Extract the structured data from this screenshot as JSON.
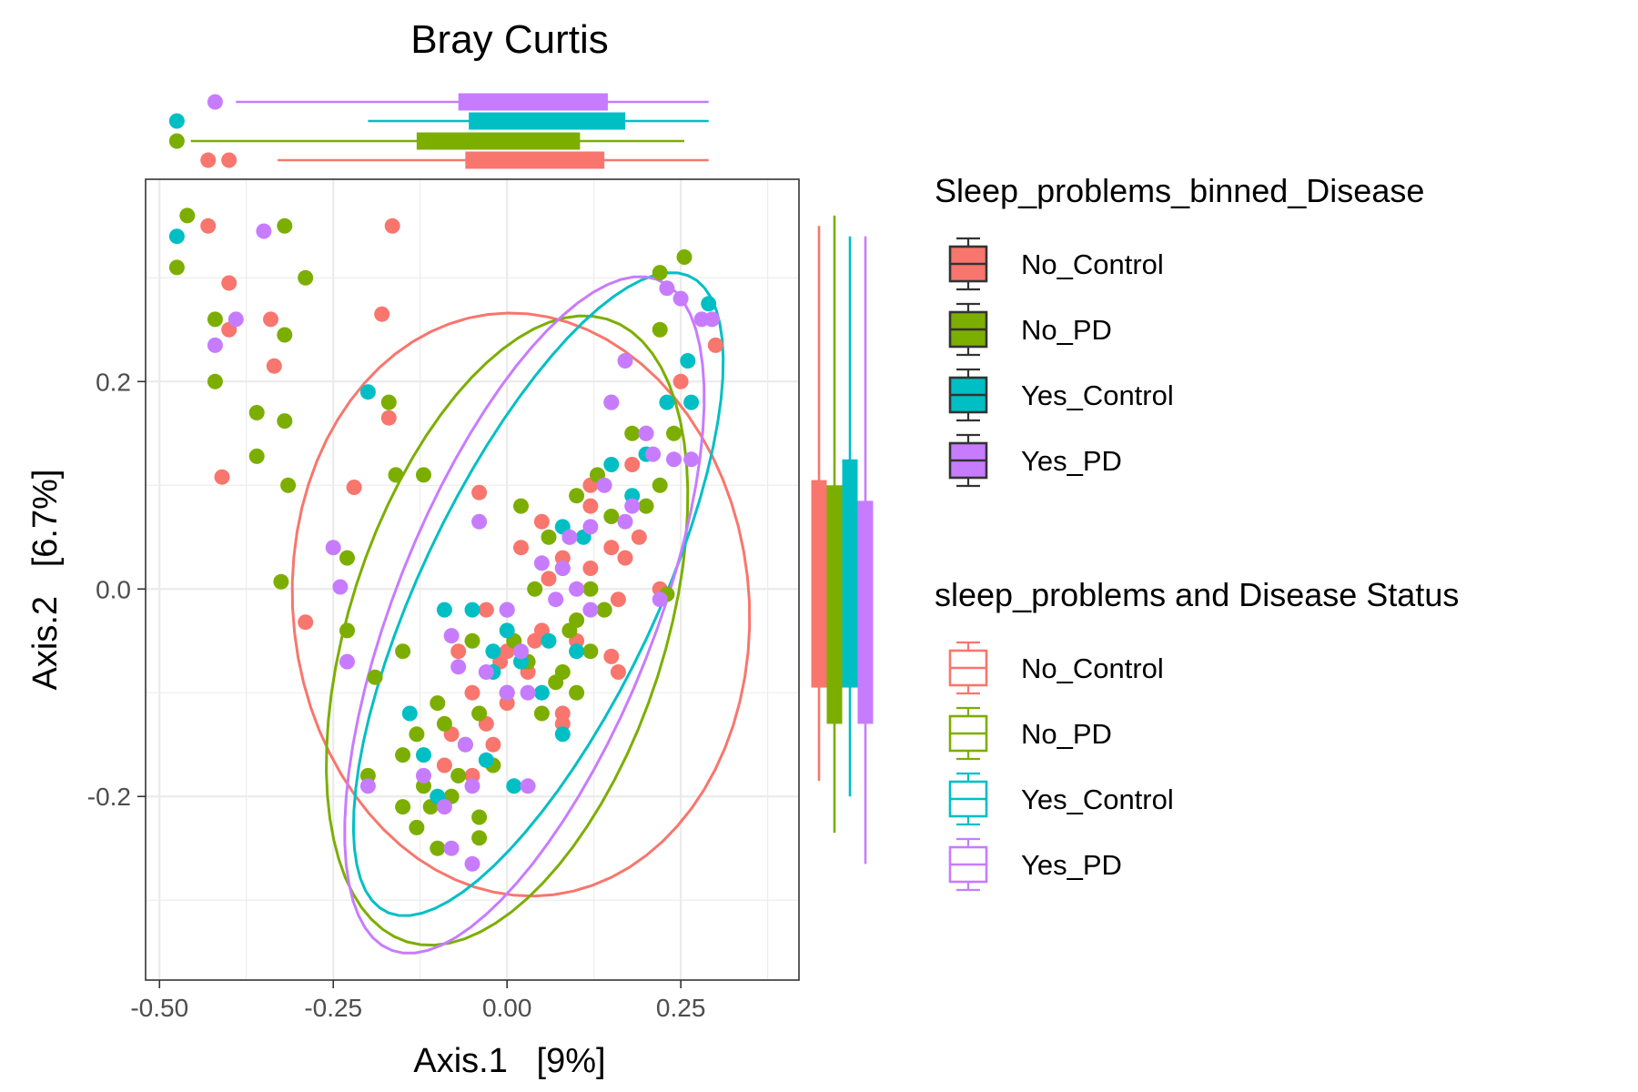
{
  "chart_data": {
    "type": "scatter",
    "title": "Bray Curtis",
    "xlabel": "Axis.1   [9%]",
    "ylabel": "Axis.2   [6.7%]",
    "xlim": [
      -0.52,
      0.42
    ],
    "ylim": [
      -0.377,
      0.395
    ],
    "xticks": [
      -0.5,
      -0.25,
      0.0,
      0.25
    ],
    "xtick_labels": [
      "-0.50",
      "-0.25",
      "0.00",
      "0.25"
    ],
    "yticks": [
      -0.2,
      0.0,
      0.2
    ],
    "ytick_labels": [
      "-0.2",
      "0.0",
      "0.2"
    ],
    "grid": true,
    "legend_fill_title": "Sleep_problems_binned_Disease",
    "legend_color_title": "sleep_problems and Disease Status",
    "legend_position": "right",
    "series": [
      {
        "name": "No_Control",
        "color": "#F8766D",
        "ellipse": {
          "cx": 0.02,
          "cy": -0.015,
          "rx": 0.28,
          "ry": 0.33,
          "angle": 82
        },
        "box_x": {
          "q1": -0.06,
          "median": 0.06,
          "q3": 0.14,
          "whisker_low": -0.33,
          "whisker_high": 0.29,
          "outliers": [
            -0.43,
            -0.4
          ]
        },
        "box_y": {
          "q1": -0.095,
          "median": -0.02,
          "q3": 0.105,
          "whisker_low": -0.185,
          "whisker_high": 0.35
        },
        "points": [
          [
            -0.43,
            0.35
          ],
          [
            -0.4,
            0.295
          ],
          [
            -0.34,
            0.26
          ],
          [
            -0.335,
            0.215
          ],
          [
            -0.4,
            0.25
          ],
          [
            -0.165,
            0.35
          ],
          [
            -0.18,
            0.265
          ],
          [
            -0.17,
            0.165
          ],
          [
            -0.41,
            0.108
          ],
          [
            -0.22,
            0.098
          ],
          [
            -0.29,
            -0.032
          ],
          [
            -0.04,
            0.093
          ],
          [
            0.05,
            0.065
          ],
          [
            0.08,
            0.03
          ],
          [
            0.12,
            0.02
          ],
          [
            0.16,
            -0.01
          ],
          [
            0.22,
            0.0
          ],
          [
            -0.03,
            -0.02
          ],
          [
            0.0,
            -0.06
          ],
          [
            0.05,
            -0.04
          ],
          [
            0.1,
            -0.05
          ],
          [
            0.15,
            -0.065
          ],
          [
            -0.07,
            -0.06
          ],
          [
            -0.05,
            -0.1
          ],
          [
            0.0,
            -0.11
          ],
          [
            0.03,
            -0.08
          ],
          [
            -0.02,
            -0.15
          ],
          [
            -0.05,
            -0.18
          ],
          [
            -0.03,
            -0.13
          ],
          [
            0.08,
            -0.12
          ],
          [
            -0.09,
            -0.17
          ],
          [
            0.15,
            0.04
          ],
          [
            0.18,
            0.12
          ],
          [
            0.25,
            0.2
          ],
          [
            0.2,
            0.15
          ],
          [
            0.12,
            0.08
          ],
          [
            0.09,
            0.05
          ],
          [
            0.14,
            -0.02
          ],
          [
            0.3,
            0.235
          ],
          [
            0.19,
            0.05
          ],
          [
            0.17,
            0.03
          ],
          [
            0.06,
            0.01
          ],
          [
            0.04,
            -0.05
          ],
          [
            -0.01,
            -0.07
          ],
          [
            -0.08,
            -0.14
          ],
          [
            0.12,
            0.1
          ],
          [
            0.02,
            0.04
          ],
          [
            0.0,
            -0.1
          ],
          [
            0.16,
            -0.08
          ],
          [
            0.08,
            -0.13
          ]
        ]
      },
      {
        "name": "No_PD",
        "color": "#7CAE00",
        "ellipse": {
          "cx": 0.0,
          "cy": -0.04,
          "rx": 0.34,
          "ry": 0.21,
          "angle": 55
        },
        "box_x": {
          "q1": -0.13,
          "median": 0.0,
          "q3": 0.105,
          "whisker_low": -0.455,
          "whisker_high": 0.255,
          "outliers": [
            -0.475
          ]
        },
        "box_y": {
          "q1": -0.13,
          "median": -0.025,
          "q3": 0.1,
          "whisker_low": -0.235,
          "whisker_high": 0.36
        },
        "points": [
          [
            -0.46,
            0.36
          ],
          [
            -0.32,
            0.35
          ],
          [
            -0.475,
            0.31
          ],
          [
            -0.29,
            0.3
          ],
          [
            -0.42,
            0.26
          ],
          [
            -0.32,
            0.245
          ],
          [
            -0.42,
            0.2
          ],
          [
            -0.36,
            0.17
          ],
          [
            -0.32,
            0.162
          ],
          [
            -0.36,
            0.128
          ],
          [
            -0.315,
            0.1
          ],
          [
            -0.325,
            0.007
          ],
          [
            -0.23,
            0.03
          ],
          [
            -0.19,
            -0.085
          ],
          [
            -0.17,
            0.18
          ],
          [
            -0.16,
            0.11
          ],
          [
            -0.12,
            0.11
          ],
          [
            -0.15,
            -0.16
          ],
          [
            -0.13,
            -0.14
          ],
          [
            -0.12,
            -0.19
          ],
          [
            -0.15,
            -0.21
          ],
          [
            -0.13,
            -0.23
          ],
          [
            -0.11,
            -0.21
          ],
          [
            -0.1,
            -0.11
          ],
          [
            -0.09,
            -0.13
          ],
          [
            -0.07,
            -0.18
          ],
          [
            -0.06,
            -0.15
          ],
          [
            -0.04,
            -0.12
          ],
          [
            -0.04,
            -0.22
          ],
          [
            -0.02,
            -0.17
          ],
          [
            0.0,
            -0.1
          ],
          [
            0.01,
            -0.05
          ],
          [
            0.02,
            0.08
          ],
          [
            0.03,
            -0.07
          ],
          [
            0.05,
            -0.12
          ],
          [
            0.07,
            -0.09
          ],
          [
            0.09,
            -0.04
          ],
          [
            0.1,
            -0.1
          ],
          [
            0.12,
            -0.06
          ],
          [
            0.1,
            0.09
          ],
          [
            0.13,
            0.11
          ],
          [
            0.15,
            0.18
          ],
          [
            0.18,
            0.15
          ],
          [
            0.2,
            0.08
          ],
          [
            0.22,
            0.1
          ],
          [
            0.24,
            0.15
          ],
          [
            0.22,
            0.25
          ],
          [
            0.22,
            0.305
          ],
          [
            0.255,
            0.32
          ],
          [
            0.23,
            -0.005
          ],
          [
            0.14,
            -0.02
          ],
          [
            0.08,
            0.02
          ],
          [
            0.06,
            0.05
          ],
          [
            -0.05,
            -0.05
          ],
          [
            0.0,
            -0.02
          ],
          [
            0.04,
            0.0
          ],
          [
            0.1,
            -0.03
          ],
          [
            -0.08,
            -0.2
          ],
          [
            -0.1,
            -0.25
          ],
          [
            -0.04,
            -0.24
          ],
          [
            0.15,
            0.07
          ],
          [
            -0.15,
            -0.06
          ],
          [
            -0.23,
            -0.04
          ],
          [
            -0.2,
            -0.18
          ],
          [
            0.12,
            0.0
          ],
          [
            0.08,
            -0.08
          ]
        ]
      },
      {
        "name": "Yes_Control",
        "color": "#00BFC4",
        "ellipse": {
          "cx": 0.045,
          "cy": -0.005,
          "rx": 0.38,
          "ry": 0.15,
          "angle": 51
        },
        "box_x": {
          "q1": -0.055,
          "median": 0.06,
          "q3": 0.17,
          "whisker_low": -0.2,
          "whisker_high": 0.29,
          "outliers": [
            -0.475
          ]
        },
        "box_y": {
          "q1": -0.095,
          "median": -0.03,
          "q3": 0.125,
          "whisker_low": -0.2,
          "whisker_high": 0.34
        },
        "points": [
          [
            -0.475,
            0.34
          ],
          [
            -0.2,
            0.19
          ],
          [
            -0.09,
            -0.02
          ],
          [
            -0.05,
            -0.02
          ],
          [
            -0.02,
            -0.06
          ],
          [
            -0.02,
            -0.08
          ],
          [
            0.0,
            -0.04
          ],
          [
            0.02,
            -0.07
          ],
          [
            0.06,
            -0.05
          ],
          [
            0.1,
            -0.06
          ],
          [
            -0.14,
            -0.12
          ],
          [
            -0.12,
            -0.16
          ],
          [
            -0.1,
            -0.2
          ],
          [
            -0.03,
            -0.165
          ],
          [
            0.01,
            -0.19
          ],
          [
            0.08,
            -0.14
          ],
          [
            0.05,
            -0.1
          ],
          [
            0.11,
            0.05
          ],
          [
            0.18,
            0.09
          ],
          [
            0.2,
            0.13
          ],
          [
            0.23,
            0.18
          ],
          [
            0.26,
            0.22
          ],
          [
            0.265,
            0.18
          ],
          [
            0.29,
            0.275
          ],
          [
            0.15,
            0.12
          ],
          [
            0.08,
            0.06
          ]
        ]
      },
      {
        "name": "Yes_PD",
        "color": "#C77CFF",
        "ellipse": {
          "cx": 0.025,
          "cy": -0.025,
          "rx": 0.38,
          "ry": 0.17,
          "angle": 55
        },
        "box_x": {
          "q1": -0.07,
          "median": 0.02,
          "q3": 0.145,
          "whisker_low": -0.39,
          "whisker_high": 0.29,
          "outliers": [
            -0.42
          ]
        },
        "box_y": {
          "q1": -0.13,
          "median": -0.035,
          "q3": 0.085,
          "whisker_low": -0.265,
          "whisker_high": 0.34
        },
        "points": [
          [
            -0.35,
            0.345
          ],
          [
            -0.39,
            0.26
          ],
          [
            -0.42,
            0.235
          ],
          [
            -0.25,
            0.04
          ],
          [
            -0.24,
            0.002
          ],
          [
            -0.23,
            -0.07
          ],
          [
            -0.2,
            -0.19
          ],
          [
            -0.08,
            -0.045
          ],
          [
            -0.07,
            -0.075
          ],
          [
            -0.06,
            -0.15
          ],
          [
            -0.08,
            -0.25
          ],
          [
            -0.05,
            -0.265
          ],
          [
            -0.12,
            -0.18
          ],
          [
            -0.09,
            -0.21
          ],
          [
            -0.04,
            0.065
          ],
          [
            0.0,
            -0.02
          ],
          [
            0.02,
            -0.06
          ],
          [
            0.05,
            0.025
          ],
          [
            0.07,
            -0.01
          ],
          [
            0.09,
            0.05
          ],
          [
            0.12,
            0.06
          ],
          [
            0.14,
            0.1
          ],
          [
            0.17,
            0.065
          ],
          [
            0.17,
            0.22
          ],
          [
            0.2,
            0.15
          ],
          [
            0.21,
            0.13
          ],
          [
            0.15,
            0.18
          ],
          [
            0.23,
            0.29
          ],
          [
            0.25,
            0.28
          ],
          [
            0.28,
            0.26
          ],
          [
            0.295,
            0.26
          ],
          [
            0.265,
            0.125
          ],
          [
            0.24,
            0.125
          ],
          [
            0.1,
            0.0
          ],
          [
            0.03,
            -0.1
          ],
          [
            -0.05,
            -0.19
          ],
          [
            0.03,
            -0.19
          ],
          [
            0.0,
            -0.1
          ],
          [
            -0.03,
            -0.08
          ],
          [
            0.12,
            -0.02
          ],
          [
            0.08,
            0.02
          ],
          [
            0.18,
            0.08
          ],
          [
            0.22,
            -0.01
          ]
        ]
      }
    ]
  }
}
